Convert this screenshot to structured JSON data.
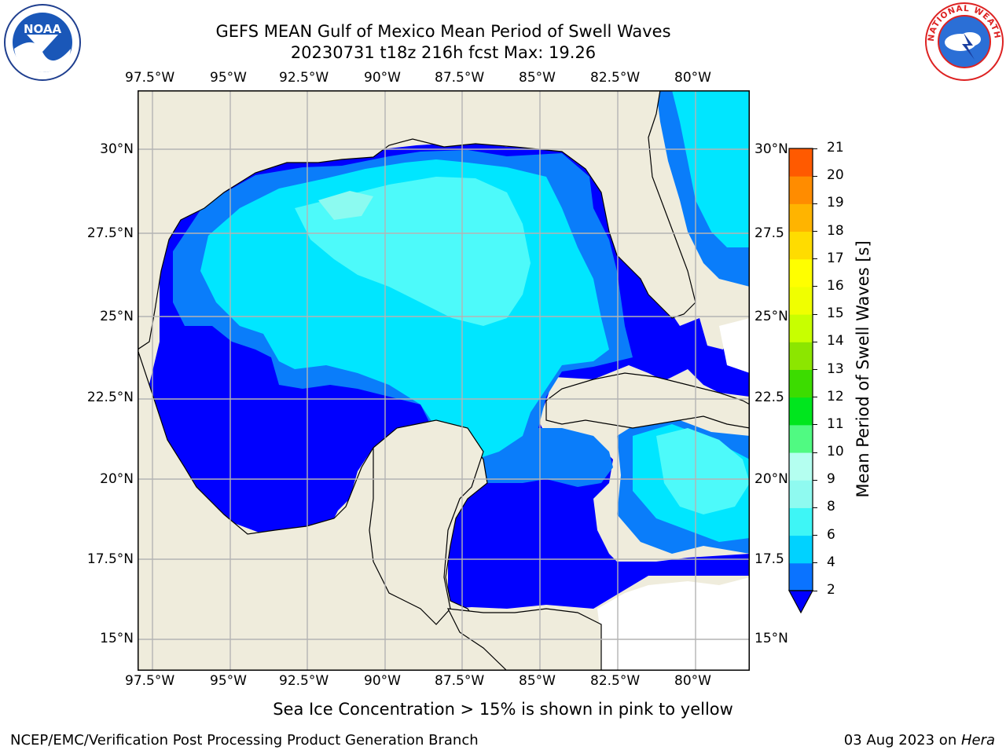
{
  "header": {
    "title_line1": "GEFS MEAN Gulf of Mexico Mean Period of Swell Waves",
    "title_line2": "20230731 t18z 216h fcst   Max: 19.26"
  },
  "map": {
    "lon_labels": [
      "97.5°W",
      "95°W",
      "92.5°W",
      "90°W",
      "87.5°W",
      "85°W",
      "82.5°W",
      "80°W"
    ],
    "lat_labels_left": [
      "30°N",
      "27.5°N",
      "25°N",
      "22.5°N",
      "20°N",
      "17.5°N",
      "15°N"
    ],
    "lat_labels_right": [
      "30°N",
      "27.5",
      "25°N",
      "22.5",
      "20°N",
      "17.5",
      "15°N"
    ],
    "colors": {
      "land": "#efecdc",
      "level_1": "#0000ff",
      "level_2": "#0a7dfa",
      "level_3": "#00e6ff",
      "level_4": "#4dfafa",
      "level_5": "#8cfaf0",
      "no_data": "#ffffff"
    }
  },
  "colorbar": {
    "label": "Mean Period of Swell Waves [s]",
    "tick_labels": [
      "2",
      "4",
      "6",
      "8",
      "9",
      "10",
      "11",
      "12",
      "13",
      "14",
      "15",
      "16",
      "17",
      "18",
      "19",
      "20",
      "21"
    ],
    "colors": [
      "#0a73ff",
      "#00d2ff",
      "#3ef6f6",
      "#8ffaf0",
      "#b4fff0",
      "#50fa82",
      "#00e61e",
      "#3cdc00",
      "#8ce600",
      "#c8ff00",
      "#f0ff00",
      "#ffff00",
      "#ffdc00",
      "#ffb400",
      "#ff8c00",
      "#ff5a00",
      "#ff2800",
      "#ff0000"
    ]
  },
  "caption": "Sea Ice Concentration > 15% is shown in pink to yellow",
  "footer": {
    "left": "NCEP/EMC/Verification Post Processing Product Generation Branch",
    "right_prefix": "03 Aug 2023 on ",
    "right_machine": "Hera"
  },
  "logos": {
    "noaa_text": "NOAA",
    "nws_text": "NATIONAL WEATHER SERVICE"
  }
}
